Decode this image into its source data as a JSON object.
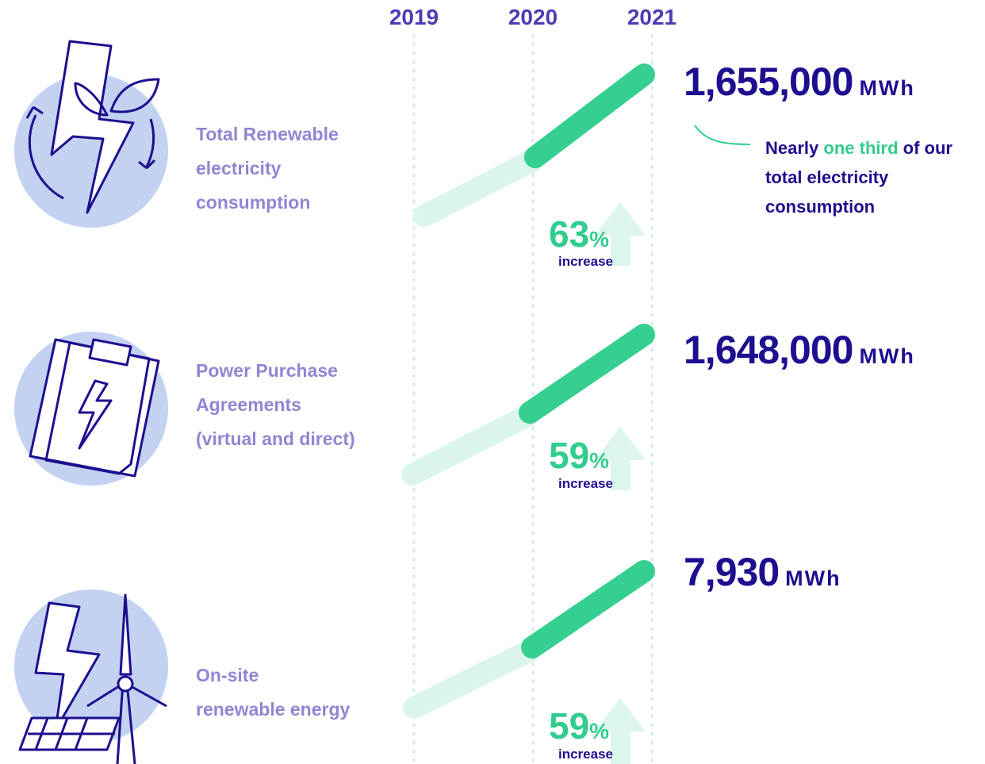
{
  "years": [
    "2019",
    "2020",
    "2021"
  ],
  "rows": [
    {
      "label": [
        "Total Renewable",
        "electricity",
        "consumption"
      ],
      "value": "1,655,000",
      "unit": "MWh",
      "percent": "63",
      "percent_sign": "%",
      "change": "increase",
      "note": {
        "before": "Nearly",
        "highlight": "one third",
        "after": "of our total electricity consumption"
      }
    },
    {
      "label": [
        "Power Purchase",
        "Agreements",
        "(virtual and direct)"
      ],
      "value": "1,648,000",
      "unit": "MWh",
      "percent": "59",
      "percent_sign": "%",
      "change": "increase"
    },
    {
      "label": [
        "On-site",
        "renewable energy"
      ],
      "value": "7,930",
      "unit": "MWh",
      "percent": "59",
      "percent_sign": "%",
      "change": "increase"
    }
  ]
}
